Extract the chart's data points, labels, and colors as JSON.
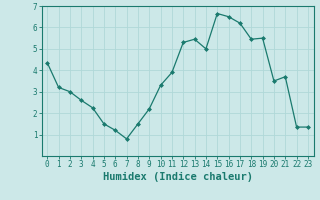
{
  "x": [
    0,
    1,
    2,
    3,
    4,
    5,
    6,
    7,
    8,
    9,
    10,
    11,
    12,
    13,
    14,
    15,
    16,
    17,
    18,
    19,
    20,
    21,
    22,
    23
  ],
  "y": [
    4.35,
    3.2,
    3.0,
    2.6,
    2.25,
    1.5,
    1.2,
    0.8,
    1.5,
    2.2,
    3.3,
    3.9,
    5.3,
    5.45,
    5.0,
    6.65,
    6.5,
    6.2,
    5.45,
    5.5,
    3.5,
    3.7,
    1.35,
    1.35
  ],
  "line_color": "#1a7a6e",
  "marker": "D",
  "marker_size": 2,
  "bg_color": "#cce8e8",
  "grid_color": "#b0d8d8",
  "xlabel": "Humidex (Indice chaleur)",
  "ylim": [
    0,
    7
  ],
  "xlim": [
    -0.5,
    23.5
  ],
  "yticks": [
    1,
    2,
    3,
    4,
    5,
    6,
    7
  ],
  "xticks": [
    0,
    1,
    2,
    3,
    4,
    5,
    6,
    7,
    8,
    9,
    10,
    11,
    12,
    13,
    14,
    15,
    16,
    17,
    18,
    19,
    20,
    21,
    22,
    23
  ],
  "tick_color": "#1a7a6e",
  "label_color": "#1a7a6e",
  "tick_fontsize": 5.5,
  "xlabel_fontsize": 7.5,
  "linewidth": 0.9
}
